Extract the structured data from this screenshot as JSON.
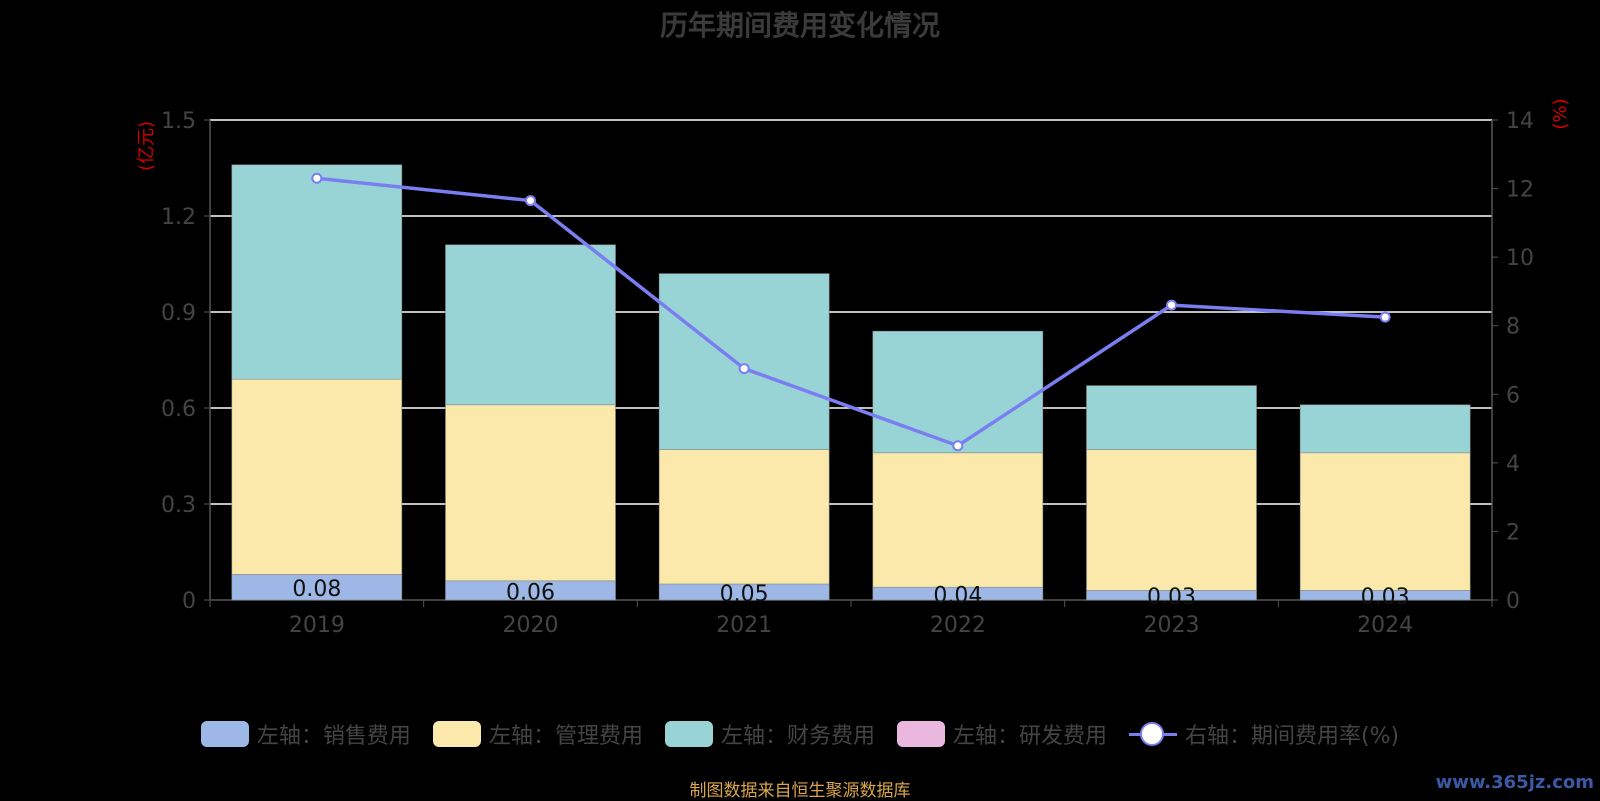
{
  "title": "历年期间费用变化情况",
  "source_note": "制图数据来自恒生聚源数据库",
  "watermark": "www.365jz.com",
  "chart_data": {
    "type": "bar",
    "categories": [
      "2019",
      "2020",
      "2021",
      "2022",
      "2023",
      "2024"
    ],
    "y_left": {
      "label": "(亿元)",
      "ticks": [
        "0",
        "0.3",
        "0.6",
        "0.9",
        "1.2",
        "1.5"
      ],
      "min": 0,
      "max": 1.5
    },
    "y_right": {
      "label": "(%)",
      "ticks": [
        "0",
        "2",
        "4",
        "6",
        "8",
        "10",
        "12",
        "14"
      ],
      "min": 0,
      "max": 14
    },
    "series": [
      {
        "name": "左轴：销售费用",
        "type": "bar",
        "axis": "left",
        "color": "#9db8e6",
        "values": [
          0.08,
          0.06,
          0.05,
          0.04,
          0.03,
          0.03
        ],
        "labels": [
          "0.08",
          "0.06",
          "0.05",
          "0.04",
          "0.03",
          "0.03"
        ]
      },
      {
        "name": "左轴：管理费用",
        "type": "bar",
        "axis": "left",
        "color": "#fae9ab",
        "values": [
          0.61,
          0.55,
          0.42,
          0.42,
          0.44,
          0.43
        ]
      },
      {
        "name": "左轴：财务费用",
        "type": "bar",
        "axis": "left",
        "color": "#98d4d6",
        "values": [
          0.67,
          0.5,
          0.55,
          0.38,
          0.2,
          0.15
        ]
      },
      {
        "name": "左轴：研发费用",
        "type": "bar",
        "axis": "left",
        "color": "#eab8de",
        "values": [
          0,
          0,
          0,
          0,
          0,
          0
        ]
      },
      {
        "name": "右轴：期间费用率(%)",
        "type": "line",
        "axis": "right",
        "color": "#7b7ef0",
        "values": [
          12.3,
          11.65,
          6.75,
          4.5,
          8.6,
          8.25
        ]
      }
    ],
    "grid": true,
    "legend_position": "bottom"
  }
}
